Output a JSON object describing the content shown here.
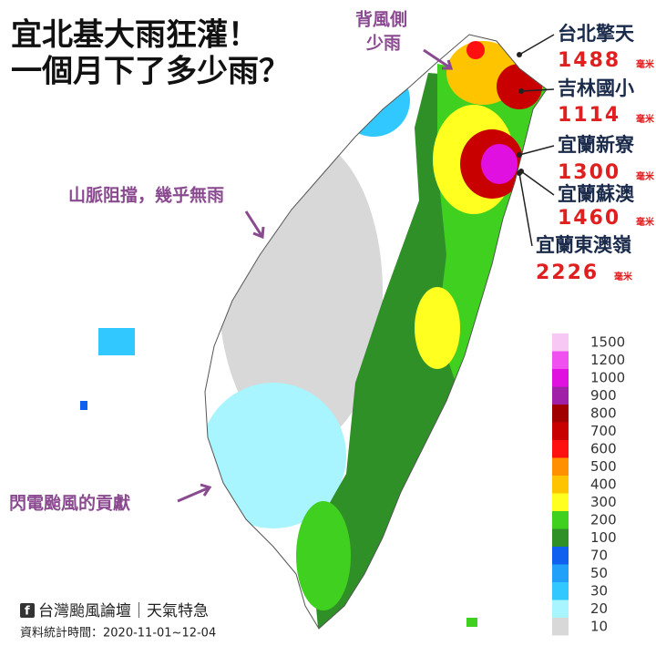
{
  "title": {
    "lines": [
      "宜北基大雨狂灌！",
      "一個月下了多少雨？"
    ]
  },
  "annotations": [
    {
      "lines": [
        "背風側",
        "少雨"
      ]
    },
    {
      "lines": [
        "山脈阻擋，幾乎無雨"
      ]
    },
    {
      "lines": [
        "閃電颱風的貢獻"
      ]
    }
  ],
  "stations": [
    {
      "name": "台北擎天",
      "value": 1488,
      "unit": "毫米"
    },
    {
      "name": "吉林國小",
      "value": 1114,
      "unit": "毫米"
    },
    {
      "name": "宜蘭新寮",
      "value": 1300,
      "unit": "毫米"
    },
    {
      "name": "宜蘭蘇澳",
      "value": 1460,
      "unit": "毫米"
    },
    {
      "name": "宜蘭東澳嶺",
      "value": 2226,
      "unit": "毫米"
    }
  ],
  "legend": {
    "labels": [
      1500,
      1200,
      1000,
      900,
      800,
      700,
      600,
      500,
      400,
      300,
      200,
      100,
      70,
      50,
      30,
      20,
      10
    ],
    "colors": [
      "#f8c8f4",
      "#f050f0",
      "#e010e0",
      "#a020a8",
      "#a00000",
      "#c80000",
      "#ff1010",
      "#ff9000",
      "#ffc400",
      "#ffff20",
      "#40d020",
      "#309028",
      "#1060f0",
      "#20a0f8",
      "#30c8ff",
      "#a8f4ff",
      "#d8d8d8"
    ]
  },
  "footer": {
    "source": "台灣颱風論壇｜天氣特急",
    "date": "資料統計時間：2020-11-01~12-04"
  }
}
